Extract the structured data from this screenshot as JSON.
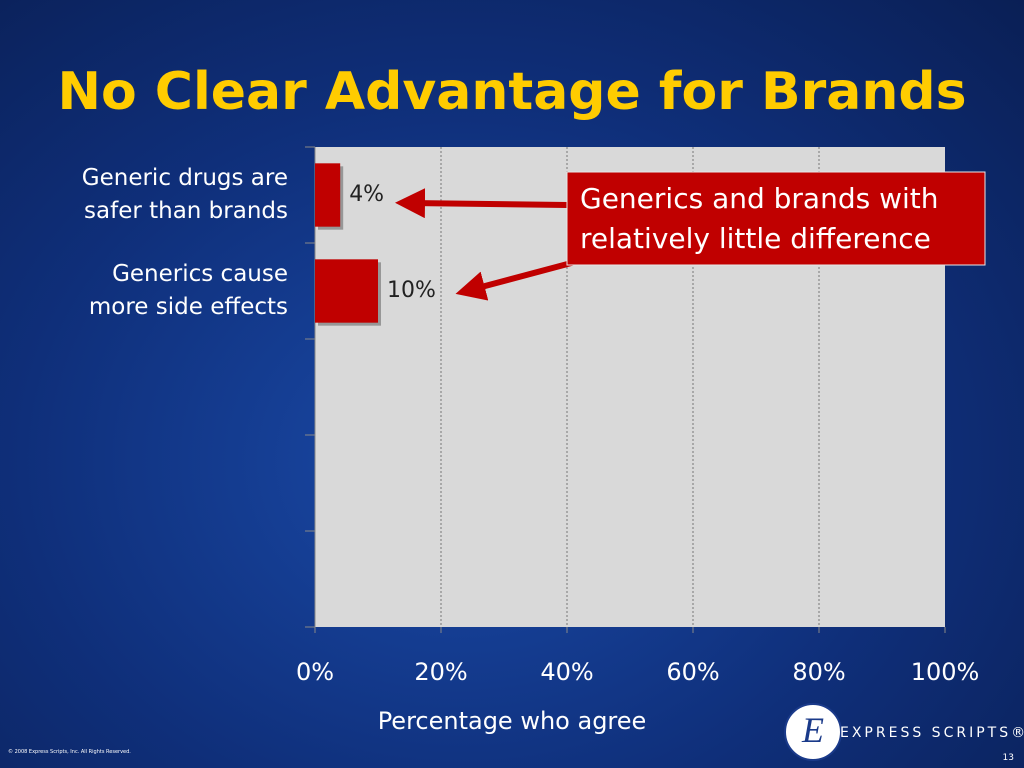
{
  "chart_data": {
    "type": "hbar",
    "title": "No Clear Advantage for Brands",
    "categories": [
      "Generic drugs are safer than brands",
      "Generics cause more side effects",
      null,
      null,
      null
    ],
    "values": [
      4,
      10,
      null,
      null,
      null
    ],
    "value_labels": [
      "4%",
      "10%",
      null,
      null,
      null
    ],
    "color": "#c00000",
    "xlim": [
      0,
      100
    ],
    "xticks": [
      {
        "value": 0,
        "label": "0%"
      },
      {
        "value": 20,
        "label": "20%"
      },
      {
        "value": 40,
        "label": "40%"
      },
      {
        "value": 60,
        "label": "60%"
      },
      {
        "value": 80,
        "label": "80%"
      },
      {
        "value": 100,
        "label": "100%"
      }
    ],
    "x_label": "Percentage who agree",
    "grid": true,
    "annotation": "Generics and brands with relatively little difference"
  },
  "slide": {
    "logo": "EXPRESS SCRIPTS®",
    "copyright": "© 2008 Express Scripts, Inc. All Rights Reserved.",
    "page_number": "13"
  }
}
